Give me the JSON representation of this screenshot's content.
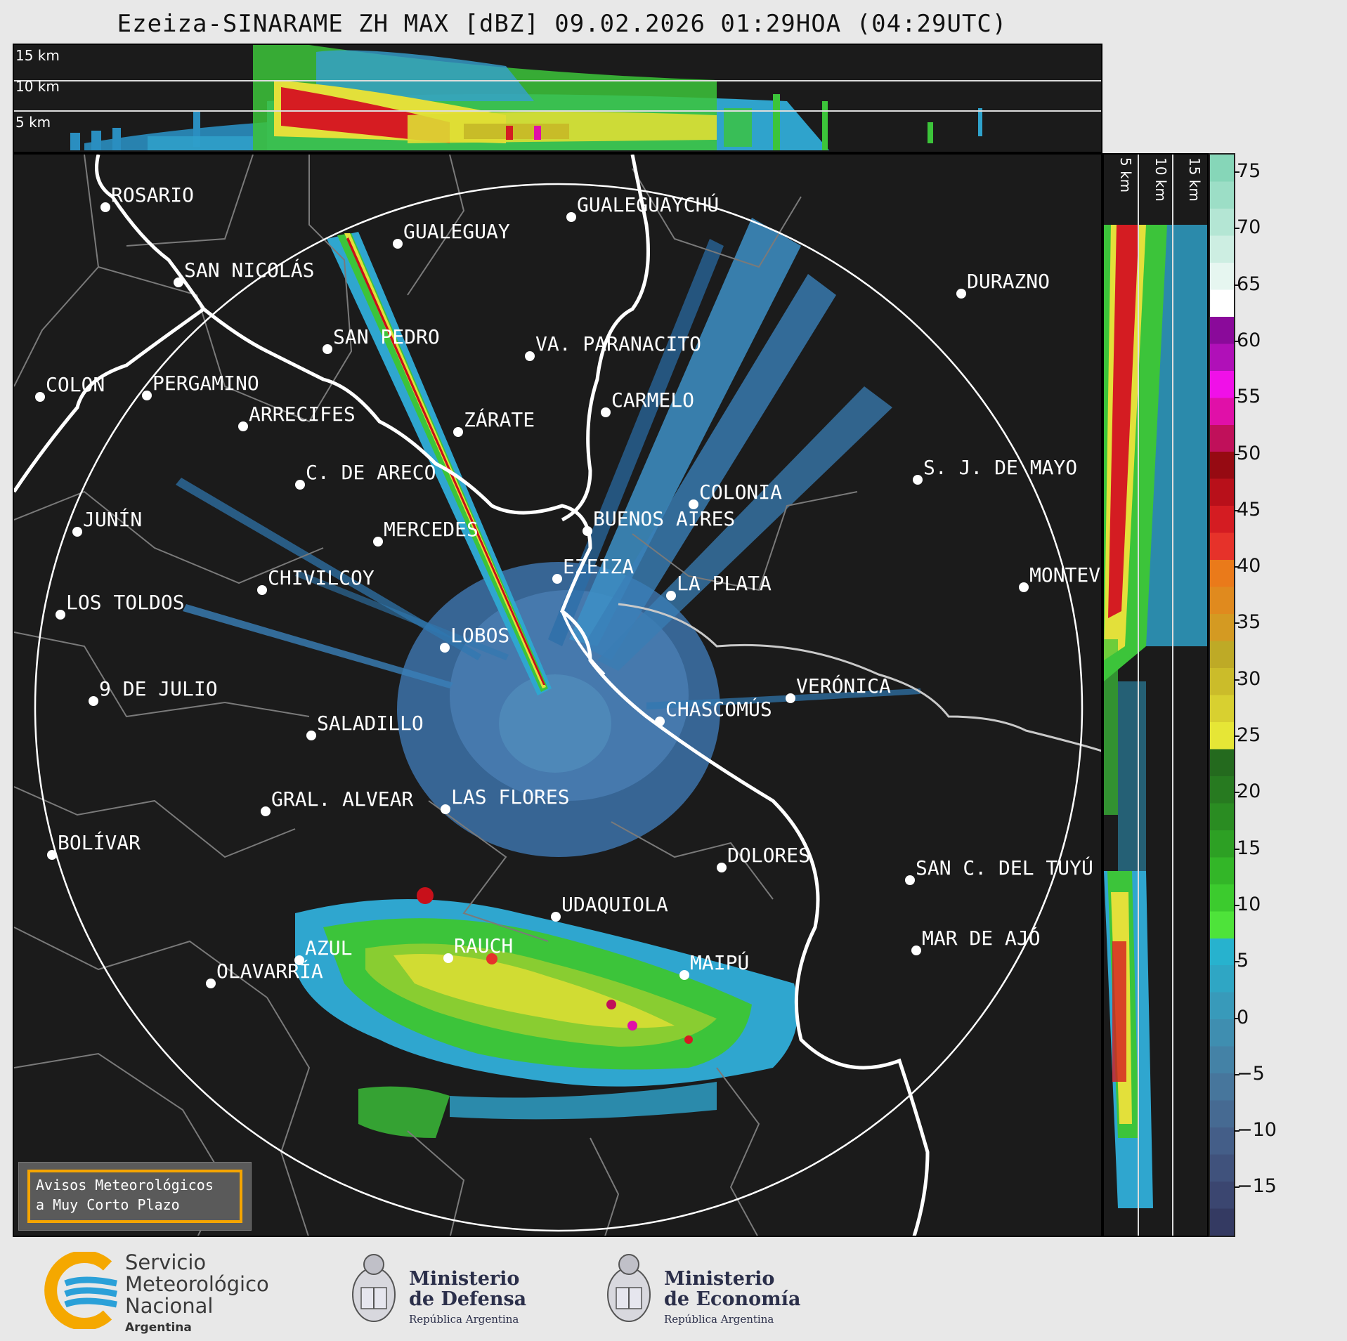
{
  "title": "Ezeiza-SINARAME ZH MAX [dBZ] 09.02.2026 01:29HOA (04:29UTC)",
  "height_labels": [
    "15 km",
    "10 km",
    "5 km"
  ],
  "cities": [
    {
      "name": "ROSARIO"
    },
    {
      "name": "GUALEGUAYCHÚ"
    },
    {
      "name": "GUALEGUAY"
    },
    {
      "name": "SAN NICOLÁS"
    },
    {
      "name": "DURAZNO"
    },
    {
      "name": "SAN PEDRO"
    },
    {
      "name": "VA. PARANACITO"
    },
    {
      "name": "COLON"
    },
    {
      "name": "PERGAMINO"
    },
    {
      "name": "CARMELO"
    },
    {
      "name": "ARRECIFES"
    },
    {
      "name": "ZÁRATE"
    },
    {
      "name": "S. J. DE MAYO"
    },
    {
      "name": "C. DE ARECO"
    },
    {
      "name": "COLONIA"
    },
    {
      "name": "JUNÍN"
    },
    {
      "name": "BUENOS AIRES"
    },
    {
      "name": "MERCEDES"
    },
    {
      "name": "MONTEVIDEO"
    },
    {
      "name": "EZEIZA"
    },
    {
      "name": "CHIVILCOY"
    },
    {
      "name": "LA PLATA"
    },
    {
      "name": "LOS TOLDOS"
    },
    {
      "name": "LOBOS"
    },
    {
      "name": "VERÓNICA"
    },
    {
      "name": "9 DE JULIO"
    },
    {
      "name": "CHASCOMÚS"
    },
    {
      "name": "SALADILLO"
    },
    {
      "name": "GRAL. ALVEAR"
    },
    {
      "name": "LAS FLORES"
    },
    {
      "name": "BOLÍVAR"
    },
    {
      "name": "DOLORES"
    },
    {
      "name": "SAN C. DEL TUYÚ"
    },
    {
      "name": "UDAQUIOLA"
    },
    {
      "name": "AZUL"
    },
    {
      "name": "RAUCH"
    },
    {
      "name": "MAR DE AJÓ"
    },
    {
      "name": "OLAVARRÍA"
    },
    {
      "name": "MAIPÚ"
    }
  ],
  "colorbar": {
    "unit": "dBZ",
    "ticks": [
      "75",
      "70",
      "65",
      "60",
      "55",
      "50",
      "45",
      "40",
      "35",
      "30",
      "25",
      "20",
      "15",
      "10",
      "5",
      "0",
      "−5",
      "−10",
      "−15"
    ],
    "colors": [
      "#343a62",
      "#3b4670",
      "#40527c",
      "#445e88",
      "#466a92",
      "#47769c",
      "#4482a6",
      "#3f8eb0",
      "#389aba",
      "#2fa6c4",
      "#27b2ce",
      "#4ee33a",
      "#3ccb2e",
      "#33b628",
      "#2da024",
      "#2a8c22",
      "#277a20",
      "#246a1e",
      "#e6e636",
      "#d8d030",
      "#cbbc2a",
      "#beaa26",
      "#d49a22",
      "#e08a1e",
      "#ea7a1a",
      "#e6322a",
      "#d41c22",
      "#b8101a",
      "#960a12",
      "#c0105a",
      "#e010a8",
      "#f010e8",
      "#b010b8",
      "#8a0a9a",
      "#ffffff",
      "#e6f6f0",
      "#cdeee2",
      "#b4e6d4",
      "#9cdec6",
      "#86d6b8"
    ]
  },
  "notice": {
    "line1": "Avisos Meteorológicos",
    "line2": "a Muy Corto Plazo"
  },
  "logos": {
    "smn": {
      "line1": "Servicio",
      "line2": "Meteorológico",
      "line3": "Nacional",
      "country": "Argentina"
    },
    "defensa": {
      "line1": "Ministerio",
      "line2": "de Defensa",
      "sub": "República Argentina"
    },
    "economia": {
      "line1": "Ministerio",
      "line2": "de Economía",
      "sub": "República Argentina"
    }
  }
}
